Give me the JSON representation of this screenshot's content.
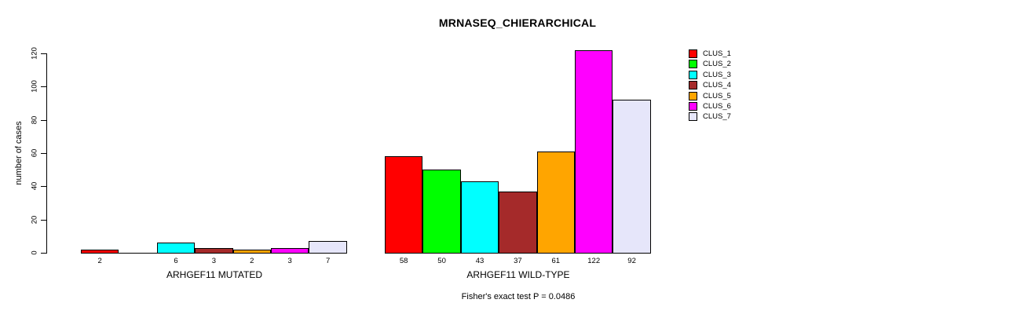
{
  "chart_data": {
    "type": "bar",
    "title": "MRNASEQ_CHIERARCHICAL",
    "ylabel": "number of cases",
    "categories": [
      "ARHGEF11 MUTATED",
      "ARHGEF11 WILD-TYPE"
    ],
    "ylim": [
      0,
      120
    ],
    "yticks": [
      0,
      20,
      40,
      60,
      80,
      100,
      120
    ],
    "grid": false,
    "legend_position": "right-outside",
    "series": [
      {
        "name": "CLUS_1",
        "color": "#FF0000",
        "values": [
          2,
          58
        ]
      },
      {
        "name": "CLUS_2",
        "color": "#00FF00",
        "values": [
          0,
          50
        ]
      },
      {
        "name": "CLUS_3",
        "color": "#00FFFF",
        "values": [
          6,
          43
        ]
      },
      {
        "name": "CLUS_4",
        "color": "#A52A2A",
        "values": [
          3,
          37
        ]
      },
      {
        "name": "CLUS_5",
        "color": "#FFA500",
        "values": [
          2,
          61
        ]
      },
      {
        "name": "CLUS_6",
        "color": "#FF00FF",
        "values": [
          3,
          122
        ]
      },
      {
        "name": "CLUS_7",
        "color": "#E6E6FA",
        "values": [
          7,
          92
        ]
      }
    ],
    "bar_value_labels_shown": true,
    "zero_bar_rule": "zero-height bars drawn as flat line, no value label",
    "annotation": "Fisher's exact test P = 0.0486"
  }
}
